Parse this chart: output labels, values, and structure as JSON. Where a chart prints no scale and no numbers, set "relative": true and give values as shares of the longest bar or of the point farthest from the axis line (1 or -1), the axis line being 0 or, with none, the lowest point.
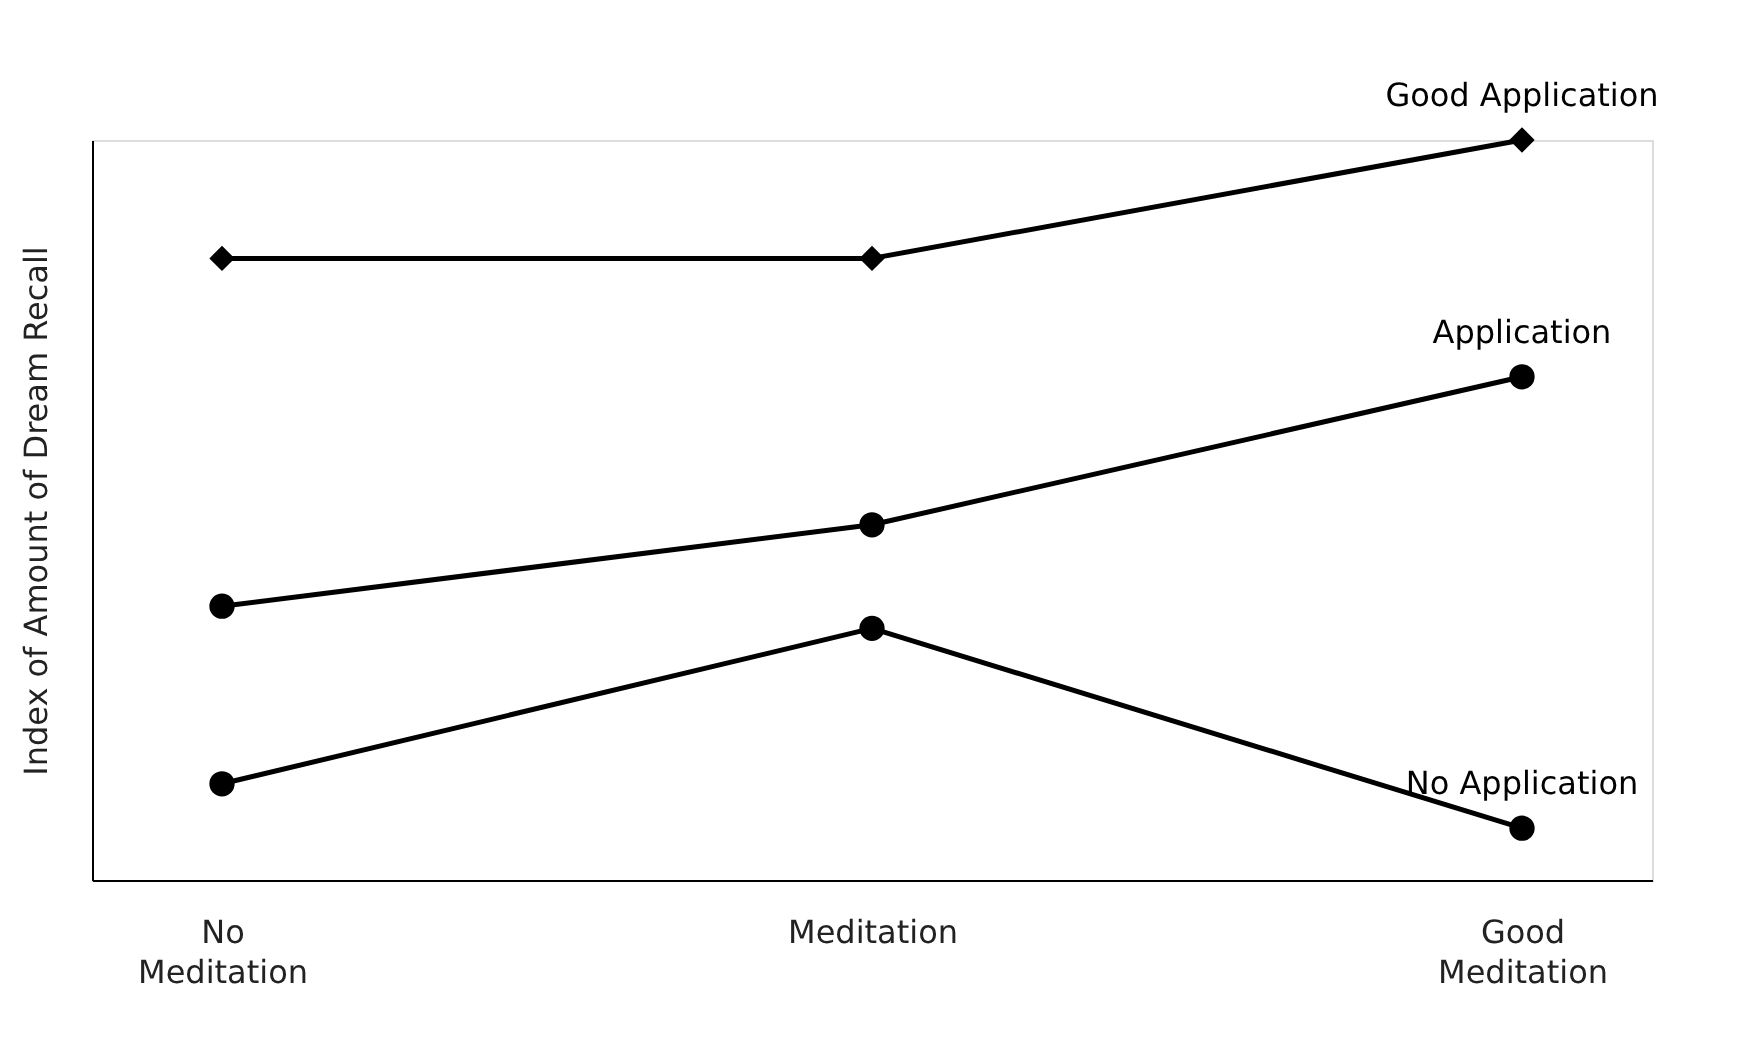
{
  "chart_data": {
    "type": "line",
    "relative": true,
    "ylabel": "Index of Amount of Dream Recall",
    "categories": [
      "No Meditation",
      "Meditation",
      "Good Meditation"
    ],
    "marker": "circle",
    "grid": false,
    "series": [
      {
        "name": "Good Application",
        "color": "#000000",
        "marker": "diamond",
        "values": [
          0.84,
          0.84,
          1
        ]
      },
      {
        "name": "Application",
        "color": "#000000",
        "values": [
          0.37,
          0.48,
          0.68
        ]
      },
      {
        "name": "No Application",
        "color": "#000000",
        "values": [
          0.13,
          0.34,
          0.07
        ]
      }
    ]
  }
}
